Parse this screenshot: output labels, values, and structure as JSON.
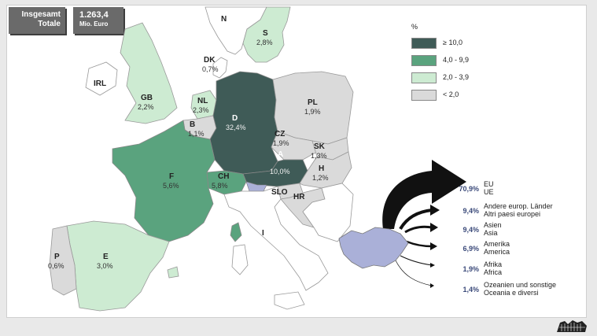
{
  "header": {
    "total_label_de": "Insgesamt",
    "total_label_it": "Totale",
    "total_value": "1.263,4",
    "total_unit": "Mio. Euro"
  },
  "legend": {
    "title": "%",
    "classes": [
      {
        "label": "≥ 10,0",
        "color": "#3f5b57"
      },
      {
        "label": "4,0  -  9,9",
        "color": "#5aa37e"
      },
      {
        "label": "2,0  -  3,9",
        "color": "#cdebd2"
      },
      {
        "label": "< 2,0",
        "color": "#dadada"
      }
    ]
  },
  "colors": {
    "other_land": "#ffffff",
    "borders": "#999999",
    "south_tyrol": "#aab0d8",
    "arrows": "#111111"
  },
  "countries": [
    {
      "code": "N",
      "pct": ""
    },
    {
      "code": "S",
      "pct": "2,8%"
    },
    {
      "code": "DK",
      "pct": "0,7%"
    },
    {
      "code": "IRL",
      "pct": ""
    },
    {
      "code": "GB",
      "pct": "2,2%"
    },
    {
      "code": "NL",
      "pct": "2,3%"
    },
    {
      "code": "B",
      "pct": "1,1%"
    },
    {
      "code": "D",
      "pct": "32,4%"
    },
    {
      "code": "PL",
      "pct": "1,9%"
    },
    {
      "code": "CZ",
      "pct": "1,9%"
    },
    {
      "code": "SK",
      "pct": "1,3%"
    },
    {
      "code": "A",
      "pct": "10,0%"
    },
    {
      "code": "H",
      "pct": "1,2%"
    },
    {
      "code": "CH",
      "pct": "5,8%"
    },
    {
      "code": "F",
      "pct": "5,6%"
    },
    {
      "code": "SLO",
      "pct": ""
    },
    {
      "code": "HR",
      "pct": ""
    },
    {
      "code": "I",
      "pct": ""
    },
    {
      "code": "P",
      "pct": "0,6%"
    },
    {
      "code": "E",
      "pct": "3,0%"
    }
  ],
  "exports": [
    {
      "pct": "70,9%",
      "de": "EU",
      "it": "UE"
    },
    {
      "pct": "9,4%",
      "de": "Andere europ. Länder",
      "it": "Altri paesi europei"
    },
    {
      "pct": "9,4%",
      "de": "Asien",
      "it": "Asia"
    },
    {
      "pct": "6,9%",
      "de": "Amerika",
      "it": "America"
    },
    {
      "pct": "1,9%",
      "de": "Afrika",
      "it": "Africa"
    },
    {
      "pct": "1,4%",
      "de": "Ozeanien und sonstige",
      "it": "Oceania e diversi"
    }
  ]
}
